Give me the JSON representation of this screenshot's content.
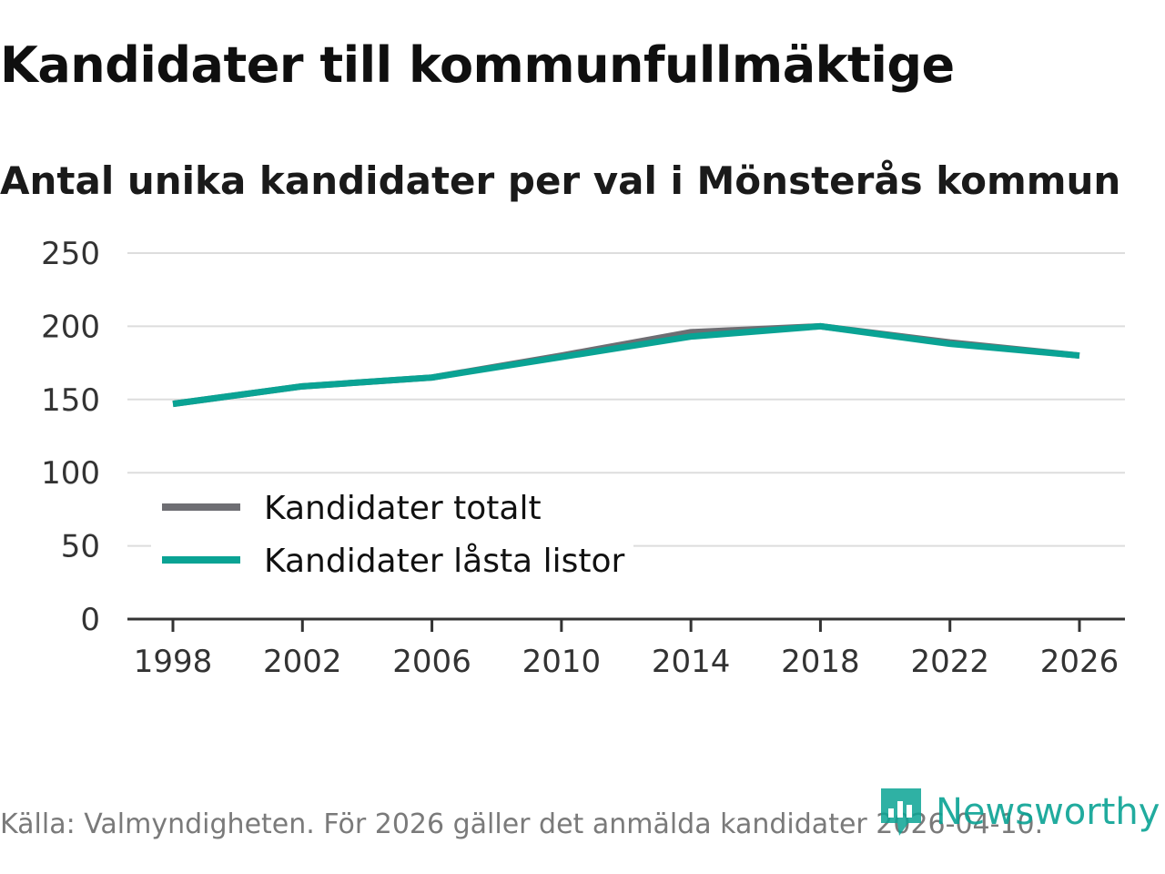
{
  "chart_data": {
    "type": "line",
    "title": "Kandidater till kommunfullmäktige",
    "subtitle": "Antal unika kandidater per val i Mönsterås kommun",
    "x": [
      1998,
      2002,
      2006,
      2010,
      2014,
      2018,
      2022,
      2026
    ],
    "x_tick_labels": [
      "1998",
      "2002",
      "2006",
      "2010",
      "2014",
      "2018",
      "2022",
      "2026"
    ],
    "ylim": [
      0,
      250
    ],
    "y_ticks": [
      0,
      50,
      100,
      150,
      200,
      250
    ],
    "y_tick_labels": [
      "0",
      "50",
      "100",
      "150",
      "200",
      "250"
    ],
    "grid": true,
    "legend_position": "bottom-left",
    "series": [
      {
        "name": "Kandidater totalt",
        "color": "#6e6e73",
        "values": [
          147,
          159,
          165,
          180,
          196,
          200,
          189,
          180
        ]
      },
      {
        "name": "Kandidater låsta listor",
        "color": "#0aa394",
        "values": [
          147,
          159,
          165,
          179,
          193,
          200,
          188,
          180
        ]
      }
    ],
    "source": "Källa: Valmyndigheten. För 2026 gäller det anmälda kandidater 2026-04-10.",
    "brand": "Newsworthy"
  },
  "colors": {
    "grid": "#dddddd",
    "axis": "#333333",
    "brand": "#0aa394"
  }
}
